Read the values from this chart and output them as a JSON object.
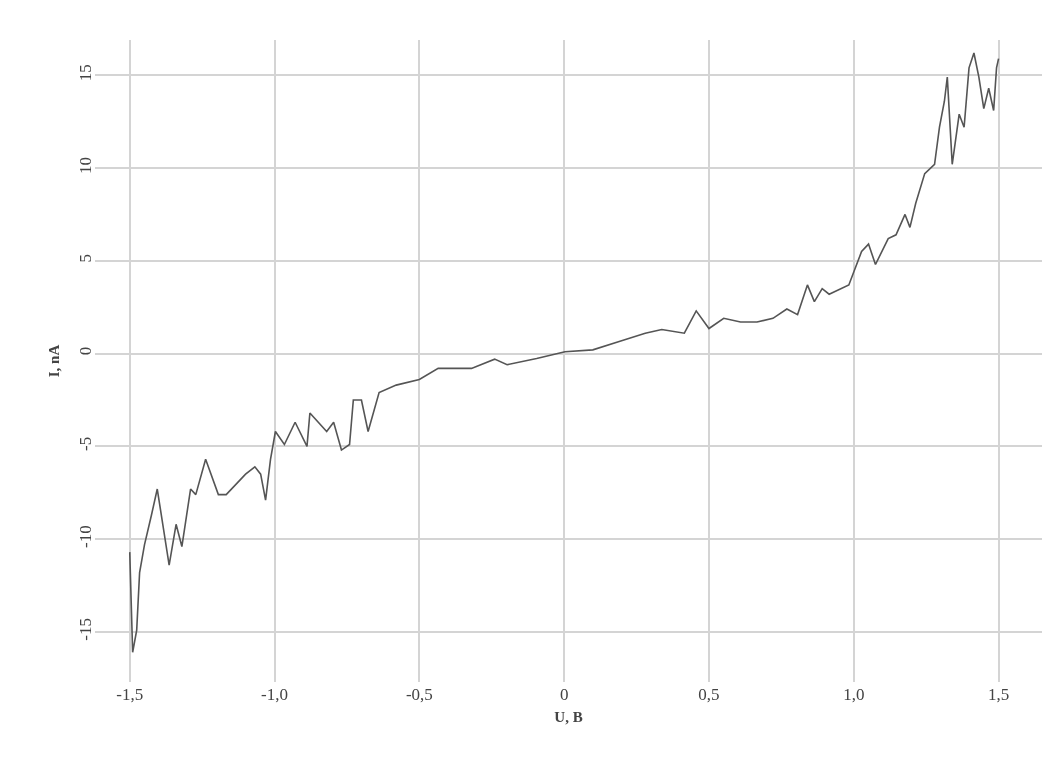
{
  "chart_data": {
    "type": "line",
    "xlabel": "U, B",
    "ylabel": "I, nA",
    "x": [
      -1.5,
      -1.49,
      -1.476,
      -1.466,
      -1.449,
      -1.425,
      -1.405,
      -1.364,
      -1.34,
      -1.32,
      -1.29,
      -1.272,
      -1.238,
      -1.194,
      -1.167,
      -1.1,
      -1.068,
      -1.048,
      -1.031,
      -1.014,
      -0.997,
      -0.966,
      -0.929,
      -0.888,
      -0.878,
      -0.82,
      -0.796,
      -0.769,
      -0.741,
      -0.728,
      -0.7,
      -0.677,
      -0.639,
      -0.58,
      -0.5,
      -0.435,
      -0.32,
      -0.24,
      -0.197,
      -0.095,
      0.003,
      0.099,
      0.19,
      0.28,
      0.337,
      0.415,
      0.456,
      0.5,
      0.551,
      0.609,
      0.666,
      0.721,
      0.769,
      0.806,
      0.84,
      0.864,
      0.891,
      0.915,
      0.983,
      1.0,
      1.027,
      1.051,
      1.075,
      1.119,
      1.146,
      1.177,
      1.194,
      1.214,
      1.245,
      1.279,
      1.296,
      1.313,
      1.323,
      1.34,
      1.364,
      1.381,
      1.398,
      1.415,
      1.432,
      1.449,
      1.466,
      1.483,
      1.493,
      1.5
    ],
    "series": [
      {
        "color": "#555555",
        "values": [
          -10.7,
          -16.1,
          -14.9,
          -11.8,
          -10.3,
          -8.7,
          -7.3,
          -11.4,
          -9.2,
          -10.4,
          -7.3,
          -7.6,
          -5.7,
          -7.6,
          -7.6,
          -6.5,
          -6.1,
          -6.5,
          -7.9,
          -5.7,
          -4.2,
          -4.9,
          -3.7,
          -5.0,
          -3.2,
          -4.2,
          -3.7,
          -5.2,
          -4.9,
          -2.5,
          -2.5,
          -4.2,
          -2.1,
          -1.7,
          -1.4,
          -0.8,
          -0.8,
          -0.3,
          -0.6,
          -0.27,
          0.1,
          0.2,
          0.65,
          1.1,
          1.3,
          1.1,
          2.3,
          1.35,
          1.9,
          1.7,
          1.7,
          1.9,
          2.4,
          2.1,
          3.7,
          2.8,
          3.5,
          3.2,
          3.7,
          4.4,
          5.5,
          5.9,
          4.8,
          6.2,
          6.4,
          7.5,
          6.8,
          8.1,
          9.7,
          10.2,
          12.2,
          13.6,
          14.9,
          10.2,
          12.9,
          12.2,
          15.4,
          16.2,
          14.9,
          13.2,
          14.3,
          13.1,
          15.4,
          15.9
        ]
      }
    ],
    "xlim": [
      -1.62,
      1.65
    ],
    "ylim": [
      -17.7,
      16.9
    ],
    "xticks": [
      {
        "value": -1.5,
        "label": "-1,5"
      },
      {
        "value": -1,
        "label": "-1,0"
      },
      {
        "value": -0.5,
        "label": "-0,5"
      },
      0,
      {
        "value": 0.5,
        "label": "0,5"
      },
      {
        "value": 1,
        "label": "1,0"
      },
      {
        "value": 1.5,
        "label": "1,5"
      }
    ],
    "yticks": [
      -15,
      -10,
      -5,
      0,
      5,
      10,
      15
    ],
    "grid": true,
    "line_style": "solid",
    "marker": "none"
  }
}
